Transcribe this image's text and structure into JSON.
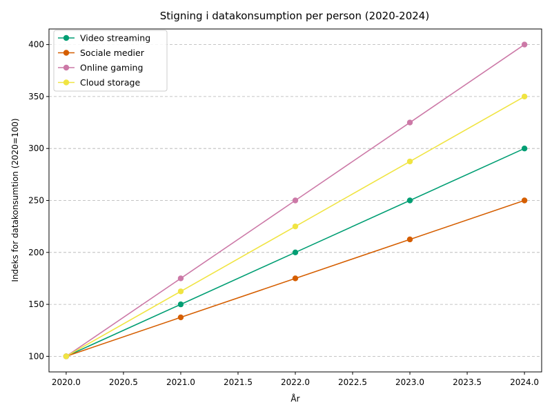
{
  "chart_data": {
    "type": "line",
    "title": "Stigning i datakonsumption per person (2020-2024)",
    "xlabel": "År",
    "ylabel": "Indeks for datakonsumtion (2020=100)",
    "x": [
      2020,
      2021,
      2022,
      2023,
      2024
    ],
    "xlim": [
      2019.85,
      2024.15
    ],
    "ylim": [
      85,
      415
    ],
    "xticks": [
      2020.0,
      2020.5,
      2021.0,
      2021.5,
      2022.0,
      2022.5,
      2023.0,
      2023.5,
      2024.0
    ],
    "xtick_labels": [
      "2020.0",
      "2020.5",
      "2021.0",
      "2021.5",
      "2022.0",
      "2022.5",
      "2023.0",
      "2023.5",
      "2024.0"
    ],
    "yticks": [
      100,
      150,
      200,
      250,
      300,
      350,
      400
    ],
    "ytick_labels": [
      "100",
      "150",
      "200",
      "250",
      "300",
      "350",
      "400"
    ],
    "grid": "horizontal dashed",
    "legend_position": "top-left",
    "series": [
      {
        "name": "Video streaming",
        "color": "#009e73",
        "values": [
          100,
          150,
          200,
          250,
          300
        ]
      },
      {
        "name": "Sociale medier",
        "color": "#d55e00",
        "values": [
          100,
          137.5,
          175,
          212.5,
          250
        ]
      },
      {
        "name": "Online gaming",
        "color": "#cc79a7",
        "values": [
          100,
          175,
          250,
          325,
          400
        ]
      },
      {
        "name": "Cloud storage",
        "color": "#f0e442",
        "values": [
          100,
          162.5,
          225,
          287.5,
          350
        ]
      }
    ]
  }
}
